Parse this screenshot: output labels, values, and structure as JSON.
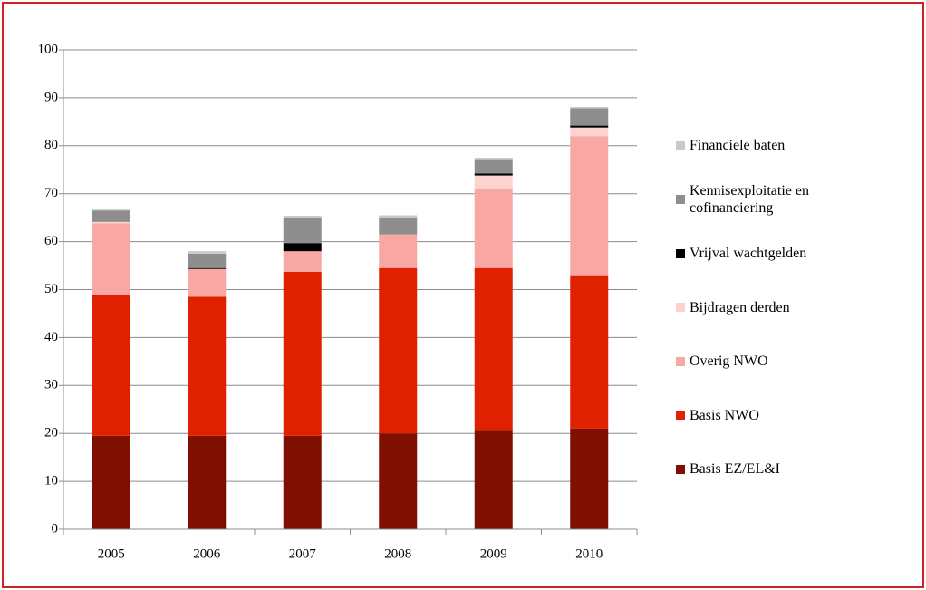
{
  "chart_data": {
    "type": "stacked_bar",
    "categories": [
      "2005",
      "2006",
      "2007",
      "2008",
      "2009",
      "2010"
    ],
    "series": [
      {
        "name": "Basis EZ/EL&I",
        "color": "#7f0f00",
        "values": [
          19.5,
          19.5,
          19.5,
          20,
          20.5,
          21
        ]
      },
      {
        "name": "Basis NWO",
        "color": "#e02100",
        "values": [
          29.5,
          29,
          34.2,
          34.5,
          34,
          32
        ]
      },
      {
        "name": "Overig NWO",
        "color": "#f8a7a3",
        "values": [
          14.8,
          5.8,
          4.3,
          7,
          16.5,
          29
        ]
      },
      {
        "name": "Bijdragen derden",
        "color": "#fdd3cf",
        "values": [
          0.3,
          0,
          0,
          0,
          2.8,
          1.8
        ]
      },
      {
        "name": "Vrijval wachtgelden",
        "color": "#000000",
        "values": [
          0,
          0.2,
          1.7,
          0,
          0.4,
          0.4
        ]
      },
      {
        "name": "Kennisexploitatie en cofinanciering",
        "color": "#8e8e8e",
        "values": [
          2.4,
          3,
          5.2,
          3.5,
          3,
          3.6
        ]
      },
      {
        "name": "Financiele baten",
        "color": "#c9c9c9",
        "values": [
          0.2,
          0.5,
          0.5,
          0.5,
          0.3,
          0.3
        ]
      }
    ],
    "ylim": [
      0,
      100
    ],
    "yticks": [
      0,
      10,
      20,
      30,
      40,
      50,
      60,
      70,
      80,
      90,
      100
    ],
    "grid": true,
    "legend": "right"
  }
}
